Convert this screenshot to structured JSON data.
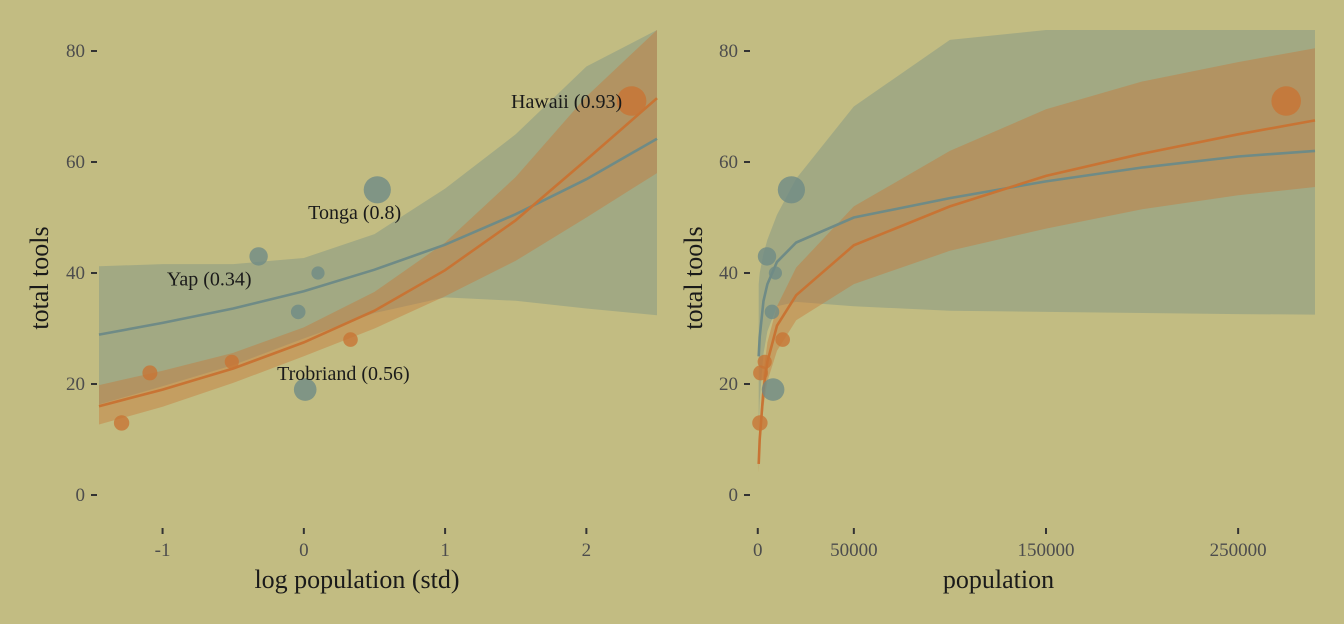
{
  "colors": {
    "background": "#c2bc82",
    "orange": "#c87434",
    "slate": "#6f8b86",
    "tick_text": "#4d4d4d",
    "title_text": "#1a1a1a"
  },
  "chart_data": [
    {
      "type": "scatter",
      "xlabel": "log population (std)",
      "ylabel": "total tools",
      "xlim": [
        -1.45,
        2.5
      ],
      "ylim": [
        0,
        84
      ],
      "x_ticks": [
        -1,
        0,
        1,
        2
      ],
      "x_tick_labels": [
        "-1",
        "0",
        "1",
        "2"
      ],
      "y_ticks": [
        0,
        20,
        40,
        60,
        80
      ],
      "y_tick_labels": [
        "0",
        "20",
        "40",
        "60",
        "80"
      ],
      "grid": false,
      "points": [
        {
          "x": -1.29,
          "y": 13,
          "size": 0.18,
          "color": "orange"
        },
        {
          "x": -1.09,
          "y": 22,
          "size": 0.16,
          "color": "orange"
        },
        {
          "x": -0.51,
          "y": 24,
          "size": 0.12,
          "color": "orange"
        },
        {
          "x": -0.32,
          "y": 43,
          "size": 0.34,
          "color": "slate",
          "label": "Yap (0.34)"
        },
        {
          "x": -0.04,
          "y": 33,
          "size": 0.14,
          "color": "slate"
        },
        {
          "x": 0.01,
          "y": 19,
          "size": 0.56,
          "color": "slate",
          "label": "Trobriand (0.56)"
        },
        {
          "x": 0.1,
          "y": 40,
          "size": 0.06,
          "color": "slate"
        },
        {
          "x": 0.33,
          "y": 28,
          "size": 0.14,
          "color": "orange"
        },
        {
          "x": 0.52,
          "y": 55,
          "size": 0.8,
          "color": "slate",
          "label": "Tonga (0.8)"
        },
        {
          "x": 2.32,
          "y": 71,
          "size": 0.93,
          "color": "orange",
          "label": "Hawaii (0.93)"
        }
      ],
      "annotations": [
        {
          "text": "Hawaii (0.93)",
          "x": 1.86,
          "y": 71
        },
        {
          "text": "Tonga (0.8)",
          "x": 0.36,
          "y": 51
        },
        {
          "text": "Yap (0.34)",
          "x": -0.67,
          "y": 39
        },
        {
          "text": "Trobriand (0.56)",
          "x": 0.28,
          "y": 22
        }
      ],
      "series": [
        {
          "color": "slate",
          "x": [
            -1.45,
            -1.0,
            -0.5,
            0.0,
            0.5,
            1.0,
            1.5,
            2.0,
            2.5
          ],
          "mean": [
            28.9,
            31.0,
            33.6,
            36.7,
            40.6,
            45.1,
            50.6,
            56.9,
            64.2
          ],
          "lower": [
            16.3,
            19.6,
            23.4,
            28.2,
            32.8,
            35.6,
            35.0,
            33.6,
            32.4
          ],
          "upper": [
            41.2,
            41.6,
            41.6,
            42.7,
            47.0,
            55.2,
            65.0,
            77.2,
            86.0
          ]
        },
        {
          "color": "orange",
          "x": [
            -1.45,
            -1.0,
            -0.5,
            0.0,
            0.5,
            1.0,
            1.5,
            2.0,
            2.5
          ],
          "mean": [
            16.0,
            19.0,
            22.8,
            27.5,
            33.2,
            40.5,
            49.5,
            60.4,
            71.5
          ],
          "lower": [
            12.7,
            15.9,
            20.2,
            25.0,
            30.0,
            35.8,
            42.2,
            50.0,
            58.0
          ],
          "upper": [
            19.8,
            22.4,
            25.6,
            30.2,
            36.6,
            45.5,
            57.3,
            71.8,
            86.0
          ]
        }
      ]
    },
    {
      "type": "scatter",
      "xlabel": "population",
      "ylabel": "total tools",
      "xlim": [
        -3000,
        290000
      ],
      "ylim": [
        0,
        84
      ],
      "x_ticks": [
        0,
        50000,
        150000,
        250000
      ],
      "x_tick_labels": [
        "0",
        "50000",
        "150000",
        "250000"
      ],
      "y_ticks": [
        0,
        20,
        40,
        60,
        80
      ],
      "y_tick_labels": [
        "0",
        "20",
        "40",
        "60",
        "80"
      ],
      "grid": false,
      "points": [
        {
          "x": 1100,
          "y": 13,
          "size": 0.18,
          "color": "orange"
        },
        {
          "x": 1500,
          "y": 22,
          "size": 0.16,
          "color": "orange"
        },
        {
          "x": 3600,
          "y": 24,
          "size": 0.12,
          "color": "orange"
        },
        {
          "x": 4791,
          "y": 43,
          "size": 0.34,
          "color": "slate"
        },
        {
          "x": 7400,
          "y": 33,
          "size": 0.14,
          "color": "slate"
        },
        {
          "x": 8000,
          "y": 19,
          "size": 0.56,
          "color": "slate"
        },
        {
          "x": 9200,
          "y": 40,
          "size": 0.06,
          "color": "slate"
        },
        {
          "x": 13000,
          "y": 28,
          "size": 0.14,
          "color": "orange"
        },
        {
          "x": 17500,
          "y": 55,
          "size": 0.8,
          "color": "slate"
        },
        {
          "x": 275000,
          "y": 71,
          "size": 0.93,
          "color": "orange"
        }
      ],
      "series": [
        {
          "color": "slate",
          "x": [
            500,
            1000,
            3000,
            5000,
            10000,
            20000,
            50000,
            100000,
            150000,
            200000,
            250000,
            290000
          ],
          "mean": [
            25.0,
            28.5,
            35.0,
            38.0,
            42.0,
            45.5,
            50.0,
            53.5,
            56.5,
            59.0,
            61.0,
            62.0
          ],
          "lower": [
            12.0,
            17.0,
            25.5,
            29.5,
            34.0,
            34.8,
            34.0,
            33.2,
            33.0,
            32.8,
            32.6,
            32.5
          ],
          "upper": [
            38.0,
            40.0,
            43.5,
            46.0,
            50.5,
            57.0,
            70.0,
            82.0,
            86.0,
            86.0,
            86.0,
            86.0
          ]
        },
        {
          "color": "orange",
          "x": [
            500,
            1000,
            3000,
            5000,
            10000,
            20000,
            50000,
            100000,
            150000,
            200000,
            250000,
            290000
          ],
          "mean": [
            5.6,
            10.0,
            19.0,
            24.0,
            30.5,
            36.0,
            45.0,
            52.0,
            57.5,
            61.5,
            65.0,
            67.5
          ],
          "lower": [
            4.0,
            8.0,
            16.0,
            20.5,
            26.0,
            31.5,
            38.0,
            44.0,
            48.0,
            51.5,
            54.0,
            55.5
          ],
          "upper": [
            7.5,
            12.5,
            22.0,
            27.5,
            34.0,
            41.0,
            52.0,
            62.0,
            69.5,
            74.5,
            78.0,
            80.5
          ]
        }
      ]
    }
  ]
}
